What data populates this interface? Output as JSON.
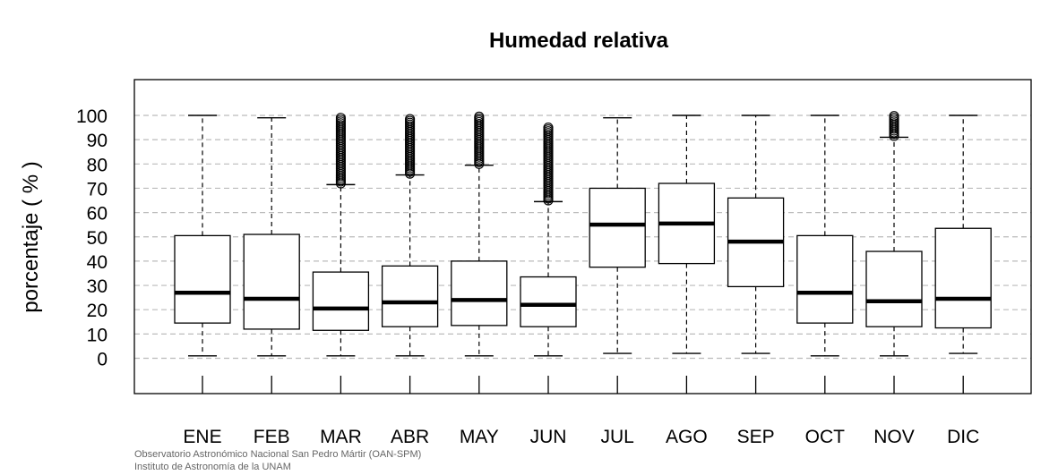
{
  "chart_data": {
    "type": "boxplot",
    "title": "Humedad relativa",
    "ylabel": "porcentaje ( % )",
    "xlabel": "",
    "ylim": [
      -15,
      115
    ],
    "yticks": [
      0,
      10,
      20,
      30,
      40,
      50,
      60,
      70,
      80,
      90,
      100
    ],
    "grid": "horizontal dashed",
    "categories": [
      "ENE",
      "FEB",
      "MAR",
      "ABR",
      "MAY",
      "JUN",
      "JUL",
      "AGO",
      "SEP",
      "OCT",
      "NOV",
      "DIC"
    ],
    "boxes": [
      {
        "whisker_low": 1,
        "q1": 14.5,
        "median": 27,
        "q3": 50.5,
        "whisker_high": 100,
        "outlier_range": null
      },
      {
        "whisker_low": 1,
        "q1": 12,
        "median": 24.5,
        "q3": 51,
        "whisker_high": 99,
        "outlier_range": null
      },
      {
        "whisker_low": 1,
        "q1": 11.5,
        "median": 20.5,
        "q3": 35.5,
        "whisker_high": 71.5,
        "outlier_range": [
          72,
          99
        ]
      },
      {
        "whisker_low": 1,
        "q1": 13,
        "median": 23,
        "q3": 38,
        "whisker_high": 75.5,
        "outlier_range": [
          76,
          99
        ]
      },
      {
        "whisker_low": 1,
        "q1": 13.5,
        "median": 24,
        "q3": 40,
        "whisker_high": 79.5,
        "outlier_range": [
          80,
          100
        ]
      },
      {
        "whisker_low": 1,
        "q1": 13,
        "median": 22,
        "q3": 33.5,
        "whisker_high": 64.5,
        "outlier_range": [
          65,
          95
        ]
      },
      {
        "whisker_low": 2,
        "q1": 37.5,
        "median": 55,
        "q3": 70,
        "whisker_high": 99,
        "outlier_range": null
      },
      {
        "whisker_low": 2,
        "q1": 39,
        "median": 55.5,
        "q3": 72,
        "whisker_high": 100,
        "outlier_range": null
      },
      {
        "whisker_low": 2,
        "q1": 29.5,
        "median": 48,
        "q3": 66,
        "whisker_high": 100,
        "outlier_range": null
      },
      {
        "whisker_low": 1,
        "q1": 14.5,
        "median": 27,
        "q3": 50.5,
        "whisker_high": 100,
        "outlier_range": null
      },
      {
        "whisker_low": 1,
        "q1": 13,
        "median": 23.5,
        "q3": 44,
        "whisker_high": 91,
        "outlier_range": [
          91.5,
          100
        ]
      },
      {
        "whisker_low": 2,
        "q1": 12.5,
        "median": 24.5,
        "q3": 53.5,
        "whisker_high": 100,
        "outlier_range": null
      }
    ]
  },
  "footer": {
    "line1": "Observatorio Astronómico Nacional San Pedro Mártir (OAN-SPM)",
    "line2": "Instituto de Astronomía de la UNAM"
  }
}
